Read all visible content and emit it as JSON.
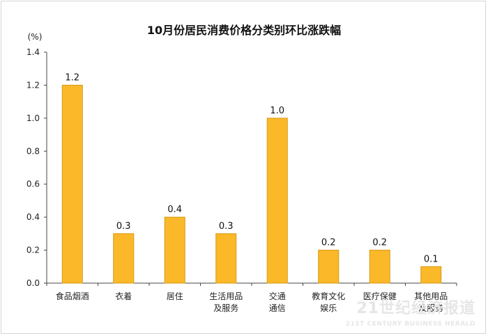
{
  "chart_data": {
    "type": "bar",
    "title": "10月份居民消费价格分类别环比涨跌幅",
    "unit_label": "(%)",
    "categories": [
      [
        "食品烟酒"
      ],
      [
        "衣着"
      ],
      [
        "居住"
      ],
      [
        "生活用品",
        "及服务"
      ],
      [
        "交通",
        "通信"
      ],
      [
        "教育文化",
        "娱乐"
      ],
      [
        "医疗保健"
      ],
      [
        "其他用品",
        "及服务"
      ]
    ],
    "values": [
      1.2,
      0.3,
      0.4,
      0.3,
      1.0,
      0.2,
      0.2,
      0.1
    ],
    "data_labels": [
      "1.2",
      "0.3",
      "0.4",
      "0.3",
      "1.0",
      "0.2",
      "0.2",
      "0.1"
    ],
    "ylim": [
      0,
      1.4
    ],
    "yticks": [
      "0.0",
      "0.2",
      "0.4",
      "0.6",
      "0.8",
      "1.0",
      "1.2",
      "1.4"
    ],
    "grid": false,
    "legend": "none",
    "bar_color": "#FBB829",
    "bar_edge_color": "#D69A10"
  },
  "watermark": {
    "main": "21世纪经济报道",
    "sub": "21ST CENTURY BUSINESS HERALD"
  }
}
